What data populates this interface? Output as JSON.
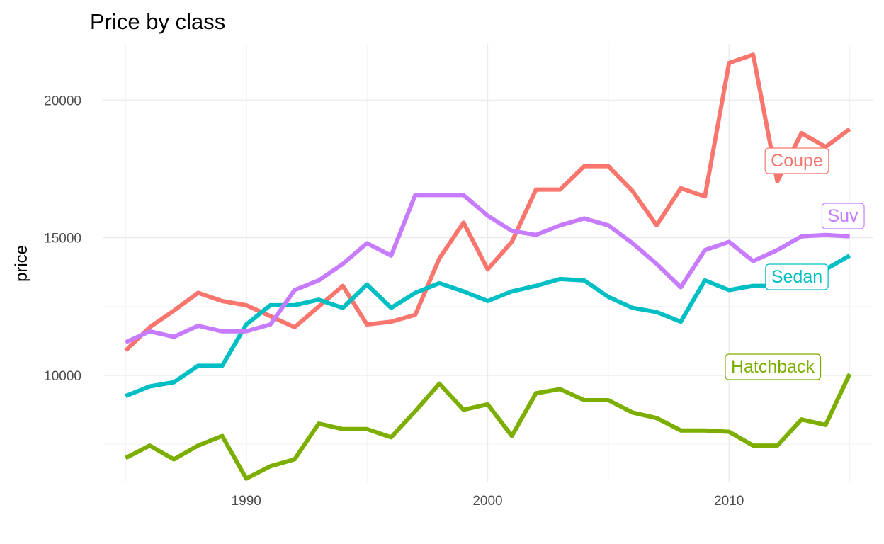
{
  "chart_data": {
    "type": "line",
    "title": "Price by class",
    "xlabel": "",
    "ylabel": "price",
    "xlim": [
      1984.05,
      1985.95
    ],
    "xlim_full": [
      1984.05,
      2015.95
    ],
    "ylim": [
      6140,
      22040
    ],
    "x_ticks": [
      1990,
      2000,
      2010
    ],
    "y_ticks": [
      10000,
      15000,
      20000
    ],
    "grid": "on",
    "legend": "direct-labels",
    "x": [
      1985,
      1986,
      1987,
      1988,
      1989,
      1990,
      1991,
      1992,
      1993,
      1994,
      1995,
      1996,
      1997,
      1998,
      1999,
      2000,
      2001,
      2002,
      2003,
      2004,
      2005,
      2006,
      2007,
      2008,
      2009,
      2010,
      2011,
      2012,
      2013,
      2014,
      2015
    ],
    "series": [
      {
        "name": "Coupe",
        "color": "#F8766D",
        "values": [
          10900,
          11750,
          12350,
          13000,
          12700,
          12550,
          12150,
          11750,
          12500,
          13250,
          11850,
          11950,
          12200,
          14250,
          15550,
          13850,
          14850,
          16750,
          16750,
          17600,
          17600,
          16700,
          15450,
          16800,
          16500,
          21350,
          21650,
          17050,
          18800,
          18300,
          18950
        ]
      },
      {
        "name": "Hatchback",
        "color": "#7CAE00",
        "values": [
          7000,
          7450,
          6950,
          7450,
          7800,
          6250,
          6700,
          6950,
          8250,
          8050,
          8050,
          7750,
          8700,
          9700,
          8750,
          8950,
          7800,
          9350,
          9500,
          9100,
          9100,
          8650,
          8450,
          8000,
          8000,
          7950,
          7450,
          7450,
          8400,
          8200,
          10050
        ]
      },
      {
        "name": "Sedan",
        "color": "#00BFC4",
        "values": [
          9250,
          9600,
          9750,
          10350,
          10350,
          11850,
          12550,
          12550,
          12750,
          12450,
          13300,
          12450,
          13000,
          13350,
          13050,
          12700,
          13050,
          13250,
          13500,
          13450,
          12850,
          12450,
          12300,
          11950,
          13450,
          13100,
          13250,
          13250,
          13300,
          13850,
          14350
        ]
      },
      {
        "name": "Suv",
        "color": "#C77CFF",
        "values": [
          11200,
          11600,
          11400,
          11800,
          11600,
          11600,
          11850,
          13100,
          13450,
          14050,
          14800,
          14350,
          16550,
          16550,
          16550,
          15800,
          15250,
          15100,
          15450,
          15700,
          15450,
          14800,
          14050,
          13200,
          14550,
          14850,
          14150,
          14550,
          15050,
          15100,
          15050
        ]
      }
    ],
    "labels": [
      {
        "series": "Coupe",
        "text": "Coupe",
        "x": 2015,
        "y": 18950
      },
      {
        "series": "Suv",
        "text": "Suv",
        "x": 2015,
        "y": 15050
      },
      {
        "series": "Sedan",
        "text": "Sedan",
        "x": 2015,
        "y": 14350
      },
      {
        "series": "Hatchback",
        "text": "Hatchback",
        "x": 2015,
        "y": 10050
      }
    ]
  }
}
